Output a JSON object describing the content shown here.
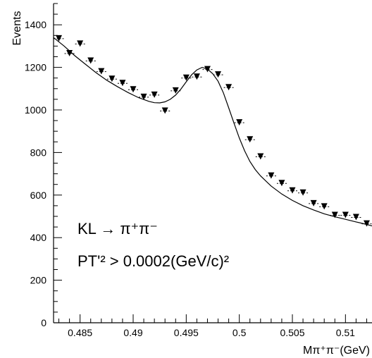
{
  "chart_data": {
    "type": "scatter",
    "title": "",
    "xlabel": "Mπ⁺π⁻(GeV)",
    "ylabel": "Events",
    "xlim": [
      0.4825,
      0.5125
    ],
    "ylim": [
      0,
      1500
    ],
    "x_ticks": [
      0.485,
      0.49,
      0.495,
      0.5,
      0.505,
      0.51
    ],
    "x_tick_labels": [
      "0.485",
      "0.49",
      "0.495",
      "0.5",
      "0.505",
      "0.51"
    ],
    "y_ticks": [
      0,
      200,
      400,
      600,
      800,
      1000,
      1200,
      1400
    ],
    "y_tick_labels": [
      "0",
      "200",
      "400",
      "600",
      "800",
      "1000",
      "1200",
      "1400"
    ],
    "grid": false,
    "annotations": {
      "line1": "KL → π⁺π⁻",
      "line2": "PT'² > 0.0002(GeV/c)²"
    },
    "series": [
      {
        "marker": "down-triangle",
        "x": [
          0.483,
          0.484,
          0.485,
          0.486,
          0.487,
          0.488,
          0.489,
          0.49,
          0.491,
          0.492,
          0.493,
          0.494,
          0.495,
          0.496,
          0.497,
          0.498,
          0.499,
          0.5,
          0.501,
          0.502,
          0.503,
          0.504,
          0.505,
          0.506,
          0.507,
          0.508,
          0.509,
          0.51,
          0.511,
          0.512
        ],
        "y": [
          1335,
          1265,
          1310,
          1230,
          1180,
          1145,
          1125,
          1095,
          1060,
          1070,
          995,
          1090,
          1150,
          1155,
          1190,
          1165,
          1105,
          940,
          860,
          780,
          690,
          655,
          620,
          610,
          560,
          545,
          505,
          505,
          495,
          465
        ]
      }
    ],
    "fit_curve": {
      "x": [
        0.4825,
        0.4835,
        0.4845,
        0.4855,
        0.4865,
        0.4875,
        0.4885,
        0.4895,
        0.4905,
        0.4915,
        0.492,
        0.4925,
        0.493,
        0.4935,
        0.494,
        0.4945,
        0.495,
        0.4955,
        0.496,
        0.4965,
        0.497,
        0.4975,
        0.498,
        0.4985,
        0.499,
        0.4995,
        0.5,
        0.5005,
        0.501,
        0.5015,
        0.502,
        0.503,
        0.504,
        0.505,
        0.506,
        0.507,
        0.508,
        0.509,
        0.51,
        0.511,
        0.512,
        0.5125
      ],
      "y": [
        1340,
        1300,
        1255,
        1215,
        1175,
        1140,
        1110,
        1082,
        1058,
        1040,
        1034,
        1033,
        1038,
        1050,
        1070,
        1098,
        1132,
        1165,
        1188,
        1200,
        1192,
        1170,
        1135,
        1080,
        1010,
        938,
        868,
        808,
        758,
        720,
        690,
        642,
        605,
        575,
        550,
        530,
        512,
        498,
        486,
        474,
        462,
        455
      ]
    }
  }
}
